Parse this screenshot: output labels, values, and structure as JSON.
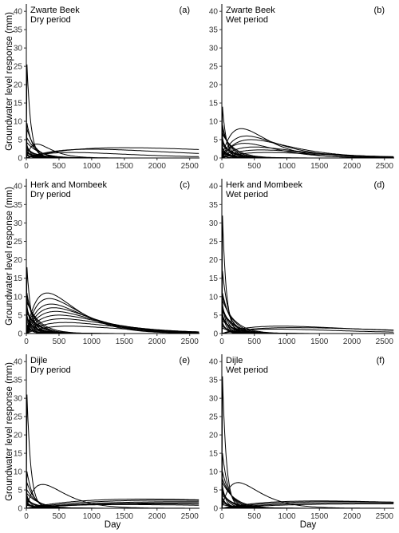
{
  "chart_data": {
    "type": "line",
    "ylabel": "Groundwater level response (mm)",
    "xlabel": "Day",
    "xlim": [
      0,
      2650
    ],
    "ylim": [
      0,
      42
    ],
    "x_ticks": [
      "0",
      "500",
      "1000",
      "1500",
      "2000",
      "2500"
    ],
    "y_ticks": [
      "0",
      "5",
      "10",
      "15",
      "20",
      "25",
      "30",
      "35",
      "40"
    ],
    "grid": false,
    "panels": [
      {
        "tag": "(a)",
        "site": "Zwarte Beek",
        "period": "Dry period",
        "peaks": [
          25.5,
          9.5,
          8.0,
          5.5,
          4.2,
          3.5,
          3.0,
          2.8,
          2.4,
          2.2,
          2.0,
          1.8,
          1.6,
          1.4,
          1.2,
          1.0,
          0.8,
          0.6
        ],
        "slow_curves": [
          [
            2.8,
            1500
          ],
          [
            2.4,
            1000
          ],
          [
            3.8,
            160
          ],
          [
            1.5,
            700
          ]
        ]
      },
      {
        "tag": "(b)",
        "site": "Zwarte Beek",
        "period": "Wet period",
        "peaks": [
          14.0,
          9.0,
          8.0,
          7.0,
          6.5,
          5.5,
          5.0,
          4.5,
          4.0,
          3.5,
          3.0,
          2.5,
          2.0,
          1.6,
          1.2,
          0.8
        ],
        "slow_curves": [
          [
            8.0,
            300
          ],
          [
            6.0,
            380
          ],
          [
            5.0,
            450
          ],
          [
            4.0,
            350
          ],
          [
            3.0,
            500
          ],
          [
            2.2,
            600
          ],
          [
            1.5,
            700
          ]
        ]
      },
      {
        "tag": "(c)",
        "site": "Herk and Mombeek",
        "period": "Dry period",
        "peaks": [
          18.0,
          11.0,
          10.0,
          9.0,
          8.5,
          7.5,
          7.0,
          6.5,
          6.0,
          5.5,
          5.0,
          4.5,
          4.0,
          3.5,
          3.0,
          2.5,
          2.0,
          1.5
        ],
        "slow_curves": [
          [
            11.0,
            320
          ],
          [
            9.5,
            350
          ],
          [
            8.0,
            380
          ],
          [
            7.0,
            420
          ],
          [
            6.0,
            450
          ],
          [
            5.0,
            500
          ],
          [
            4.0,
            550
          ],
          [
            3.0,
            600
          ],
          [
            2.0,
            650
          ]
        ]
      },
      {
        "tag": "(d)",
        "site": "Herk and Mombeek",
        "period": "Wet period",
        "peaks": [
          32.0,
          17.0,
          11.0,
          10.0,
          9.0,
          8.0,
          7.5,
          7.0,
          6.5,
          6.0,
          5.5,
          5.0,
          4.5,
          4.0,
          3.5,
          3.0,
          2.5,
          2.0,
          1.5
        ],
        "slow_curves": [
          [
            2.0,
            900
          ],
          [
            1.6,
            1100
          ],
          [
            1.2,
            800
          ]
        ]
      },
      {
        "tag": "(e)",
        "site": "Dijle",
        "period": "Dry period",
        "peaks": [
          31.0,
          10.0,
          7.0,
          5.0,
          4.0,
          3.5,
          3.0,
          2.6,
          2.3,
          2.0,
          1.8,
          1.5,
          1.2,
          1.0,
          0.8
        ],
        "slow_curves": [
          [
            6.5,
            250
          ],
          [
            2.5,
            1800
          ],
          [
            2.2,
            2200
          ],
          [
            1.8,
            2500
          ],
          [
            1.5,
            2600
          ],
          [
            1.2,
            2000
          ],
          [
            1.0,
            1500
          ]
        ]
      },
      {
        "tag": "(f)",
        "site": "Dijle",
        "period": "Wet period",
        "peaks": [
          36.0,
          15.0,
          10.0,
          8.0,
          7.0,
          6.0,
          5.0,
          4.5,
          4.0,
          3.5,
          3.0,
          2.5,
          2.0,
          1.5,
          1.0
        ],
        "slow_curves": [
          [
            7.0,
            250
          ],
          [
            2.0,
            1500
          ],
          [
            1.8,
            1800
          ],
          [
            1.5,
            2200
          ],
          [
            1.2,
            2400
          ]
        ]
      }
    ]
  }
}
